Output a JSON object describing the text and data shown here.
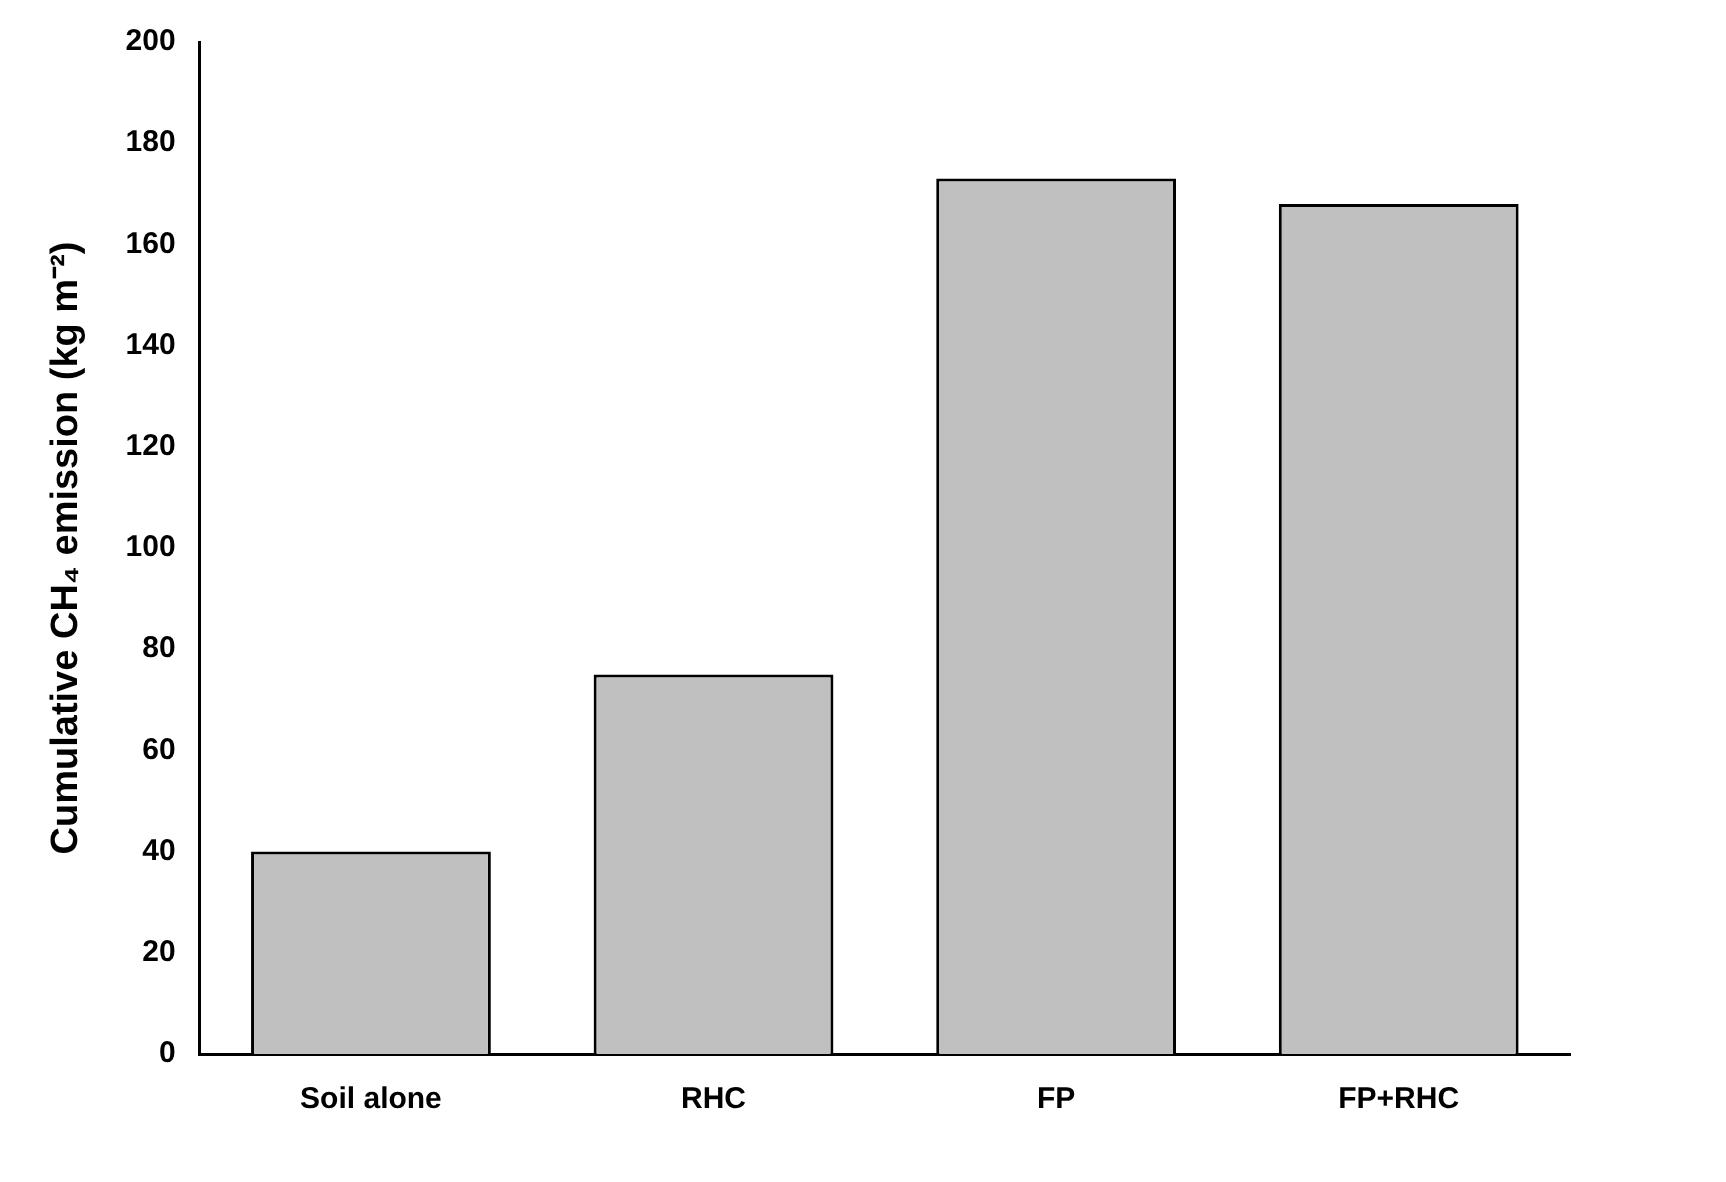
{
  "chart_data": {
    "type": "bar",
    "ylabel": "Cumulative CH₄ emission (kg m⁻²)",
    "categories": [
      "Soil alone",
      "RHC",
      "FP",
      "FP+RHC"
    ],
    "values": [
      40,
      75,
      173,
      168
    ],
    "color": "#c0c0c0",
    "ylim": [
      0,
      200
    ],
    "yticks": [
      0,
      20,
      40,
      60,
      80,
      100,
      120,
      140,
      160,
      180,
      200
    ],
    "grid": false,
    "legend": false
  }
}
